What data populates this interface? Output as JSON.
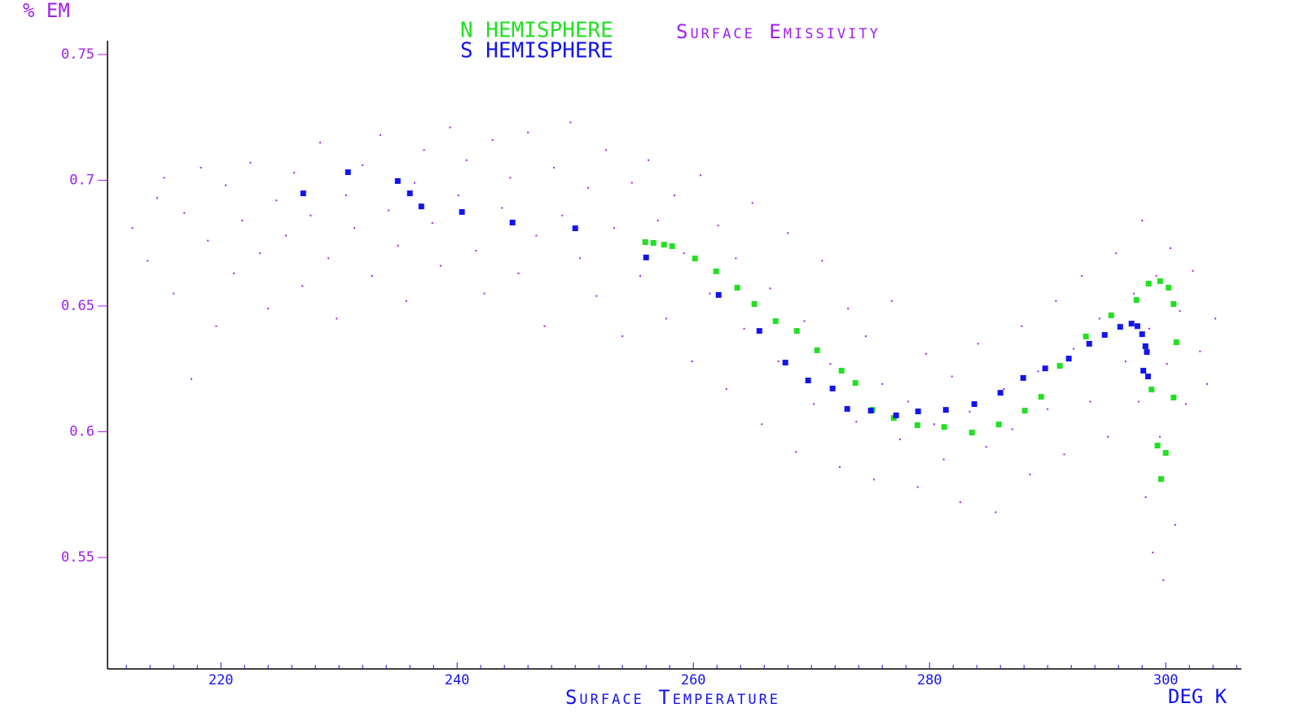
{
  "chart_data": {
    "type": "scatter",
    "title": "Surface Emissivity",
    "xlabel": "Surface Temperature",
    "xunit": "DEG K",
    "ylabel": "% EM",
    "xlim": [
      210.4,
      306.4
    ],
    "ylim": [
      0.5057,
      0.7555
    ],
    "xticks": [
      220,
      240,
      260,
      280,
      300
    ],
    "xminorticks": [
      212,
      214,
      216,
      218,
      222,
      224,
      226,
      228,
      230,
      232,
      234,
      236,
      238,
      242,
      244,
      246,
      248,
      250,
      252,
      254,
      256,
      258,
      262,
      264,
      266,
      268,
      270,
      272,
      274,
      276,
      278,
      282,
      284,
      286,
      288,
      290,
      292,
      294,
      296,
      298,
      302,
      304,
      306
    ],
    "yticks": [
      0.75,
      0.7,
      0.65,
      0.6,
      0.55
    ],
    "series": [
      {
        "color": "#a020f0",
        "size": 2,
        "x": [
          212.5,
          213.8,
          214.6,
          215.2,
          216.0,
          216.9,
          217.5,
          218.3,
          218.9,
          219.6,
          220.4,
          221.1,
          221.8,
          222.5,
          223.3,
          224.0,
          224.7,
          225.5,
          226.2,
          226.9,
          227.6,
          228.4,
          229.1,
          229.8,
          230.6,
          231.3,
          232.0,
          232.8,
          233.5,
          234.2,
          235.0,
          235.7,
          236.4,
          237.2,
          237.9,
          238.6,
          239.4,
          240.1,
          240.8,
          241.6,
          242.3,
          243.0,
          243.8,
          244.5,
          245.2,
          246.0,
          246.7,
          247.4,
          248.2,
          248.9,
          249.6,
          250.4,
          251.1,
          251.8,
          252.6,
          253.3,
          254.0,
          254.8,
          255.5,
          256.2,
          257.0,
          257.7,
          258.4,
          259.2,
          259.9,
          260.6,
          261.4,
          262.1,
          262.8,
          263.6,
          264.3,
          265.0,
          265.8,
          266.5,
          267.2,
          268.0,
          268.7,
          269.4,
          270.2,
          270.9,
          271.6,
          272.4,
          273.1,
          273.8,
          274.6,
          275.3,
          276.0,
          276.8,
          277.5,
          278.2,
          279.0,
          279.7,
          280.4,
          281.2,
          281.9,
          282.6,
          283.4,
          284.1,
          284.8,
          285.6,
          286.3,
          287.0,
          287.8,
          288.5,
          289.2,
          290.0,
          290.7,
          291.4,
          292.2,
          292.9,
          293.6,
          294.4,
          295.1,
          295.8,
          296.6,
          297.3,
          297.7,
          298.0,
          298.3,
          298.6,
          298.9,
          299.2,
          299.5,
          299.8,
          300.1,
          300.4,
          300.8,
          301.2,
          301.7,
          302.3,
          302.9,
          303.5,
          304.2
        ],
        "values": [
          0.681,
          0.668,
          0.693,
          0.701,
          0.655,
          0.687,
          0.621,
          0.705,
          0.676,
          0.642,
          0.698,
          0.663,
          0.684,
          0.707,
          0.671,
          0.649,
          0.692,
          0.678,
          0.703,
          0.658,
          0.686,
          0.715,
          0.669,
          0.645,
          0.694,
          0.681,
          0.706,
          0.662,
          0.718,
          0.688,
          0.674,
          0.652,
          0.699,
          0.712,
          0.683,
          0.666,
          0.721,
          0.694,
          0.708,
          0.672,
          0.655,
          0.716,
          0.689,
          0.701,
          0.663,
          0.719,
          0.678,
          0.642,
          0.705,
          0.686,
          0.723,
          0.669,
          0.697,
          0.654,
          0.712,
          0.681,
          0.638,
          0.699,
          0.662,
          0.708,
          0.684,
          0.645,
          0.694,
          0.671,
          0.628,
          0.702,
          0.655,
          0.682,
          0.617,
          0.669,
          0.641,
          0.691,
          0.603,
          0.657,
          0.628,
          0.679,
          0.592,
          0.644,
          0.611,
          0.668,
          0.627,
          0.586,
          0.649,
          0.604,
          0.638,
          0.581,
          0.619,
          0.652,
          0.597,
          0.612,
          0.578,
          0.631,
          0.603,
          0.589,
          0.622,
          0.572,
          0.608,
          0.635,
          0.594,
          0.568,
          0.617,
          0.601,
          0.642,
          0.583,
          0.624,
          0.609,
          0.652,
          0.591,
          0.633,
          0.662,
          0.612,
          0.645,
          0.598,
          0.671,
          0.628,
          0.655,
          0.612,
          0.684,
          0.574,
          0.641,
          0.552,
          0.662,
          0.598,
          0.541,
          0.627,
          0.673,
          0.563,
          0.648,
          0.611,
          0.664,
          0.632,
          0.619,
          0.645
        ]
      },
      {
        "name": "N HEMISPHERE",
        "color": "#22e022",
        "size": 7,
        "x": [
          255.93,
          256.62,
          257.52,
          258.21,
          260.14,
          261.93,
          263.72,
          265.17,
          266.97,
          268.76,
          270.48,
          272.55,
          273.72,
          275.17,
          276.97,
          278.97,
          281.24,
          283.59,
          285.86,
          288.07,
          289.45,
          291.03,
          293.24,
          295.38,
          297.52,
          298.55,
          299.52,
          300.24,
          300.66,
          300.9,
          300.66,
          298.8,
          299.3,
          300.0,
          299.6
        ],
        "values": [
          0.6754,
          0.6751,
          0.6744,
          0.6738,
          0.6689,
          0.6638,
          0.6573,
          0.6508,
          0.644,
          0.6401,
          0.6324,
          0.6243,
          0.6194,
          0.6087,
          0.6055,
          0.6026,
          0.6019,
          0.5997,
          0.6029,
          0.6084,
          0.6139,
          0.6262,
          0.6379,
          0.6463,
          0.6524,
          0.6589,
          0.6599,
          0.6573,
          0.6508,
          0.6356,
          0.6136,
          0.6168,
          0.5945,
          0.5916,
          0.5812
        ]
      },
      {
        "name": "S HEMISPHERE",
        "color": "#1414ee",
        "size": 7,
        "x": [
          226.97,
          230.76,
          234.97,
          236.0,
          236.97,
          240.41,
          244.69,
          250.0,
          256.0,
          262.14,
          265.59,
          267.79,
          269.72,
          271.79,
          273.03,
          275.03,
          277.17,
          279.03,
          281.38,
          283.79,
          286.0,
          287.93,
          289.79,
          291.79,
          293.52,
          294.83,
          296.14,
          297.1,
          297.6,
          298.0,
          298.28,
          298.4,
          298.1,
          298.5
        ],
        "values": [
          0.6948,
          0.7032,
          0.6997,
          0.6948,
          0.6896,
          0.6874,
          0.6832,
          0.6809,
          0.6693,
          0.6544,
          0.6401,
          0.6275,
          0.6204,
          0.6172,
          0.6091,
          0.6084,
          0.6065,
          0.6081,
          0.6087,
          0.611,
          0.6155,
          0.6214,
          0.6252,
          0.6291,
          0.635,
          0.6385,
          0.6417,
          0.643,
          0.642,
          0.6388,
          0.634,
          0.6317,
          0.6243,
          0.622
        ]
      }
    ]
  }
}
